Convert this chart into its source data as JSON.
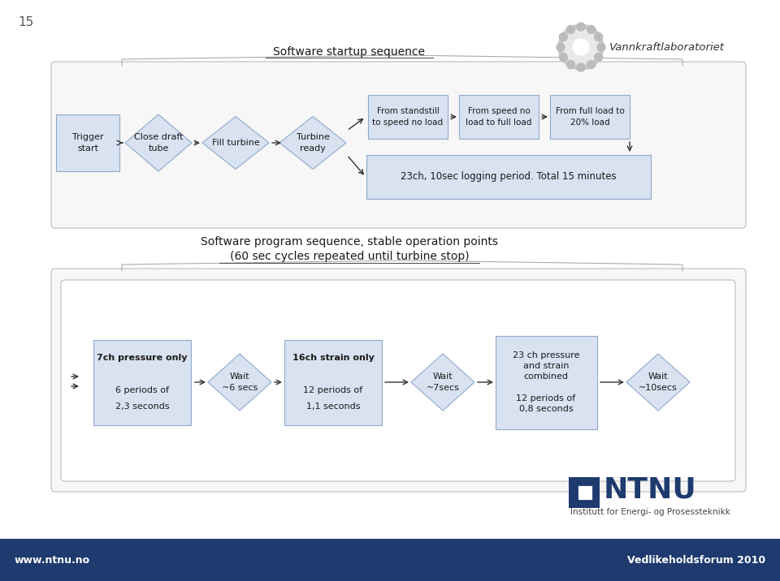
{
  "page_num": "15",
  "logo_text": "Vannkraftlaboratoriet",
  "title1": "Software startup sequence",
  "title2_line1": "Software program sequence, stable operation points",
  "title2_line2": "(60 sec cycles repeated until turbine stop)",
  "box_fill": "#d9e2f0",
  "box_edge": "#8eaacc",
  "text_color": "#1a1a1a",
  "footer_bg": "#1e3a6e",
  "footer_text_left": "www.ntnu.no",
  "footer_text_right": "Vedlikeholdsforum 2010",
  "ntnu_blue": "#1e3a6e",
  "outer_box_fill": "#f7f7f7",
  "outer_box_edge": "#aaaaaa",
  "inner_box_fill": "#ffffff",
  "slide_bg": "#ffffff"
}
